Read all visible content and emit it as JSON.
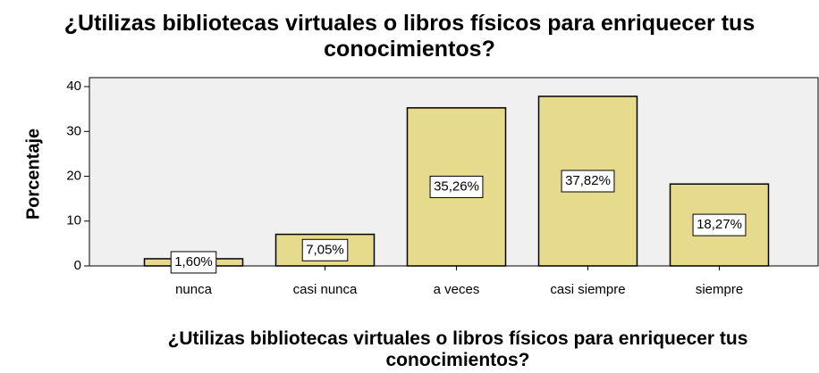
{
  "chart_data": {
    "type": "bar",
    "title": "¿Utilizas bibliotecas virtuales o libros físicos para enriquecer tus conocimientos?",
    "x_label": "¿Utilizas bibliotecas virtuales o libros físicos para enriquecer tus conocimientos?",
    "y_label": "Porcentaje",
    "categories": [
      "nunca",
      "casi nunca",
      "a veces",
      "casi siempre",
      "siempre"
    ],
    "values": [
      1.6,
      7.05,
      35.26,
      37.82,
      18.27
    ],
    "value_labels": [
      "1,60%",
      "7,05%",
      "35,26%",
      "37,82%",
      "18,27%"
    ],
    "color": "#e6da8c",
    "ylim": [
      0,
      42
    ],
    "yticks": [
      0,
      10,
      20,
      30,
      40
    ]
  }
}
